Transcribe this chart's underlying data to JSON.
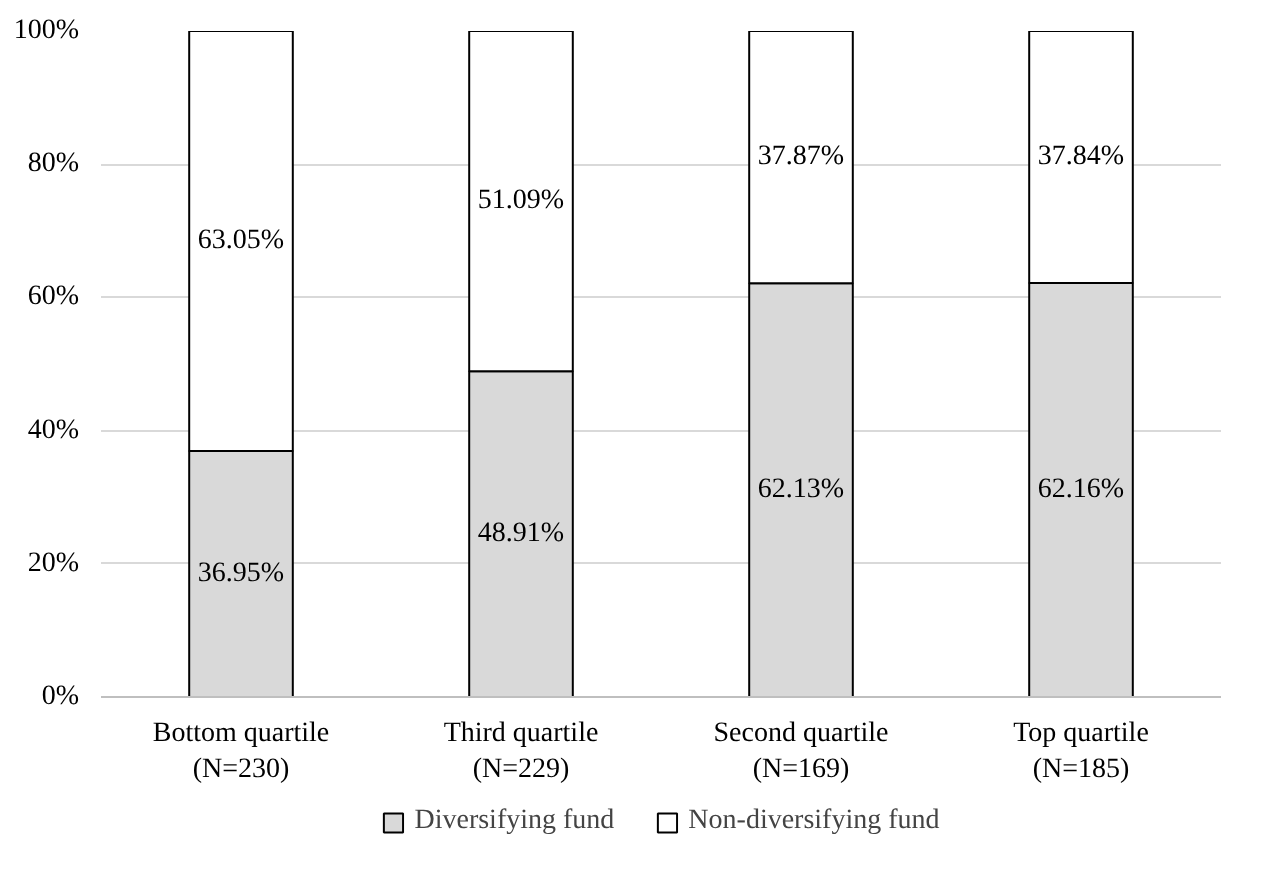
{
  "chart_data": {
    "type": "bar",
    "stacked": true,
    "categories": [
      "Bottom quartile\n(N=230)",
      "Third quartile\n(N=229)",
      "Second quartile\n(N=169)",
      "Top quartile\n(N=185)"
    ],
    "series": [
      {
        "name": "Diversifying fund",
        "color": "#d9d9d9",
        "values": [
          36.95,
          48.91,
          62.13,
          62.16
        ],
        "value_labels": [
          "36.95%",
          "48.91%",
          "62.13%",
          "62.16%"
        ]
      },
      {
        "name": "Non-diversifying fund",
        "color": "#ffffff",
        "values": [
          63.05,
          51.09,
          37.87,
          37.84
        ],
        "value_labels": [
          "63.05%",
          "51.09%",
          "37.87%",
          "37.84%"
        ]
      }
    ],
    "ylim": [
      0,
      100
    ],
    "yticks": [
      {
        "value": 0,
        "label": "0%"
      },
      {
        "value": 20,
        "label": "20%"
      },
      {
        "value": 40,
        "label": "40%"
      },
      {
        "value": 60,
        "label": "60%"
      },
      {
        "value": 80,
        "label": "80%"
      },
      {
        "value": 100,
        "label": "100%"
      }
    ],
    "grid": "y",
    "legend": "bottom"
  }
}
